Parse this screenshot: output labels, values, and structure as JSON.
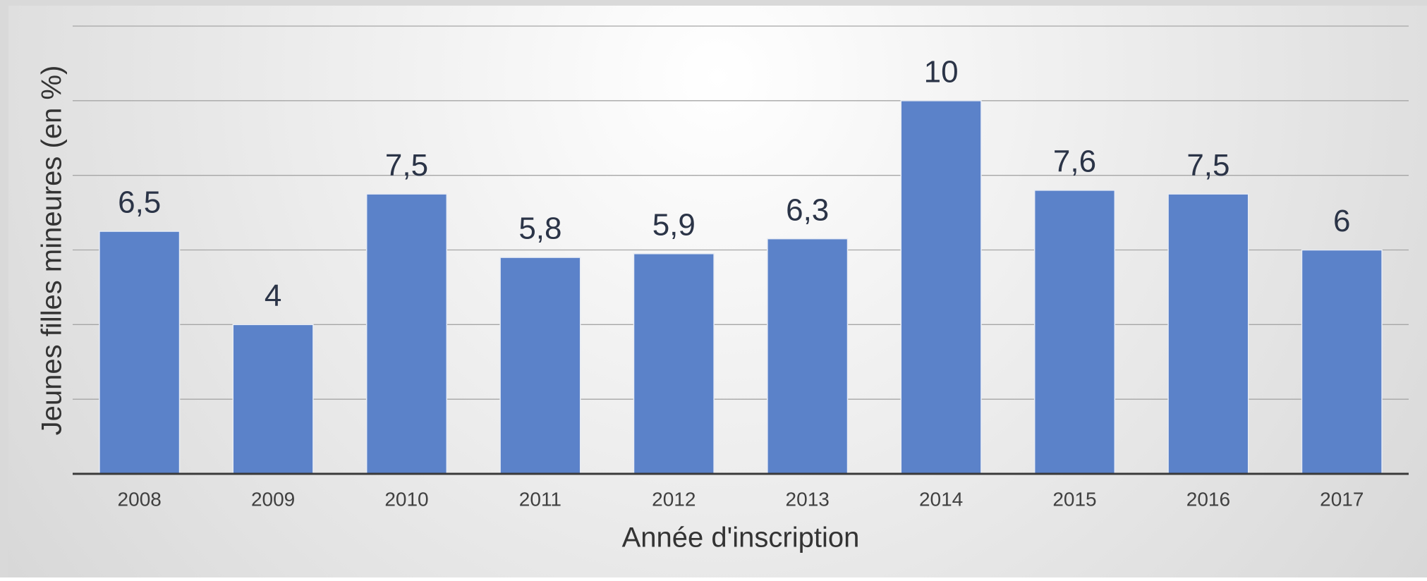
{
  "chart_data": {
    "type": "bar",
    "x_label": "Année d'inscription",
    "y_label": "Jeunes filles mineures (en %)",
    "categories": [
      "2008",
      "2009",
      "2010",
      "2011",
      "2012",
      "2013",
      "2014",
      "2015",
      "2016",
      "2017"
    ],
    "values": [
      6.5,
      4,
      7.5,
      5.8,
      5.9,
      6.3,
      10,
      7.6,
      7.5,
      6
    ],
    "value_labels": [
      "6,5",
      "4",
      "7,5",
      "5,8",
      "5,9",
      "6,3",
      "10",
      "7,6",
      "7,5",
      "6"
    ],
    "color": "#5b82c9",
    "ylim": [
      0,
      12
    ],
    "yticks": [
      0,
      2,
      4,
      6,
      8,
      10,
      12
    ],
    "grid": true
  }
}
